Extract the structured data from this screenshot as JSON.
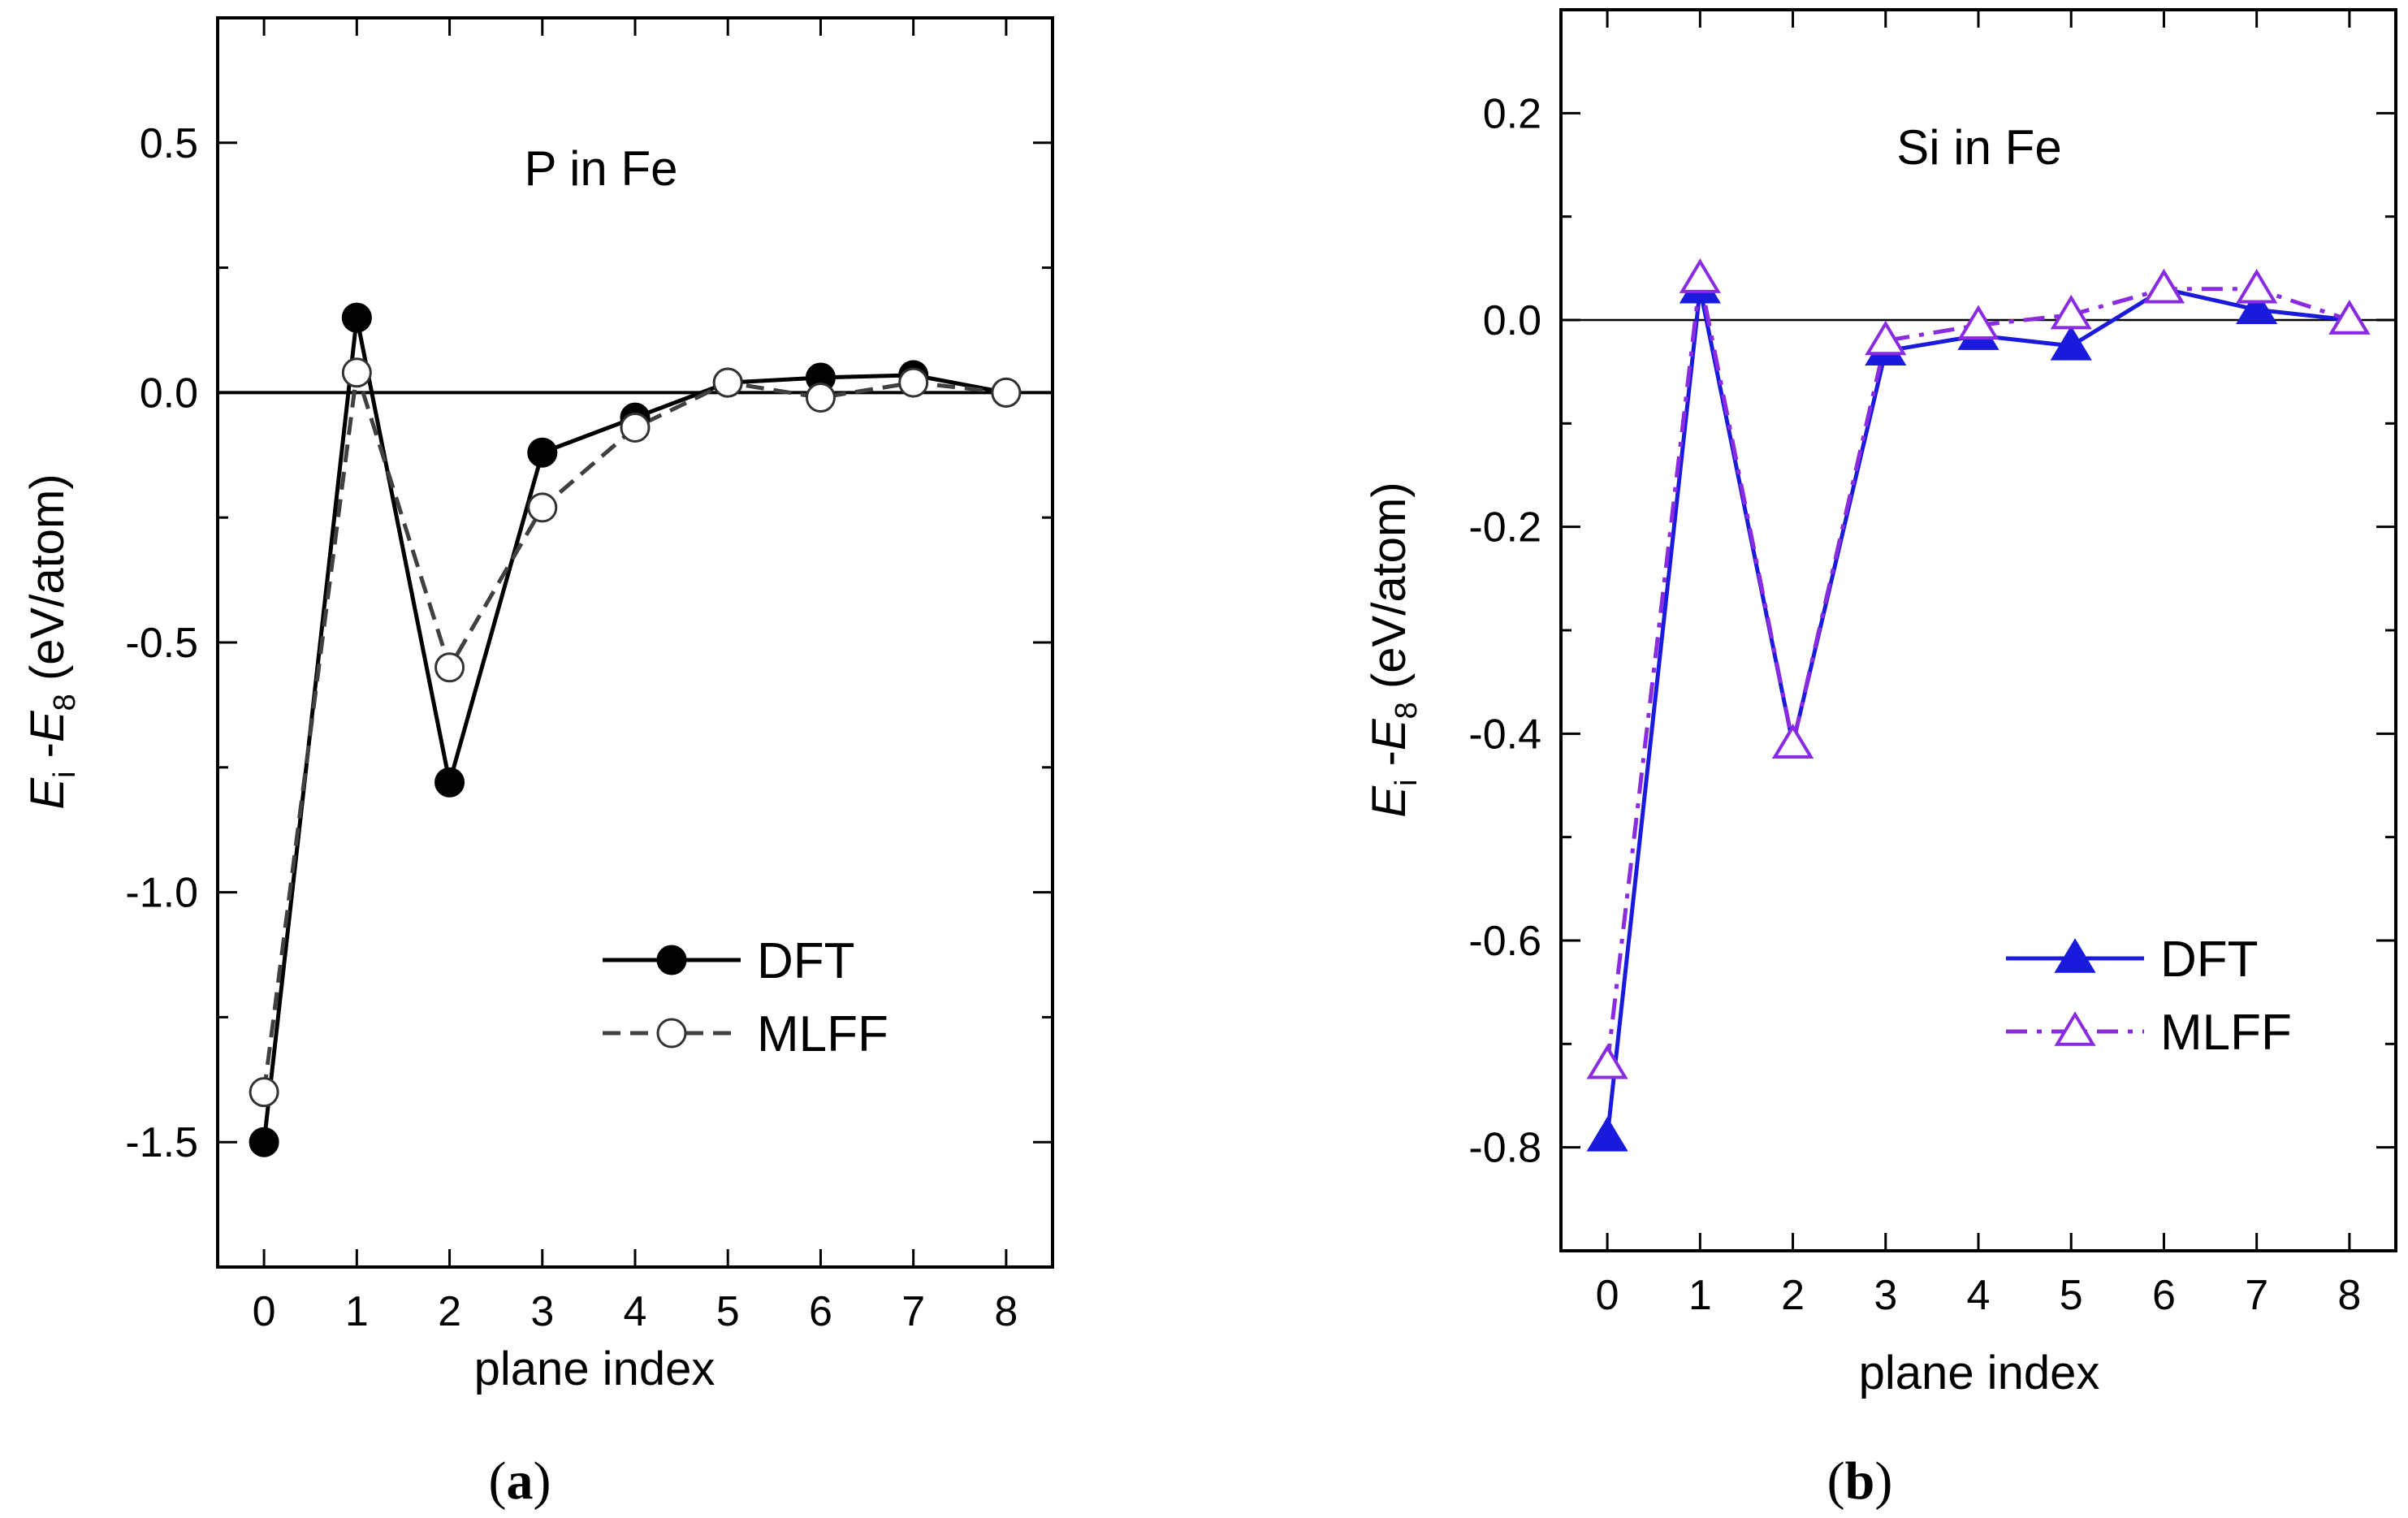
{
  "chart_data": [
    {
      "type": "line",
      "panel_label": "a",
      "title": "P in Fe",
      "xlabel": "plane index",
      "ylabel": {
        "E": "E",
        "sub_i": "i",
        "dash": " -",
        "sub_8": "8",
        "units": " (eV/atom)"
      },
      "xlim": [
        -0.5,
        8.5
      ],
      "ylim": [
        -1.75,
        0.75
      ],
      "x_ticks": [
        0,
        1,
        2,
        3,
        4,
        5,
        6,
        7,
        8
      ],
      "x_tick_labels": [
        "0",
        "1",
        "2",
        "3",
        "4",
        "5",
        "6",
        "7",
        "8"
      ],
      "y_ticks": [
        -1.5,
        -1.0,
        -0.5,
        0.0,
        0.5
      ],
      "y_tick_labels": [
        "-1.5",
        "-1.0",
        "-0.5",
        "0.0",
        "0.5"
      ],
      "zero_line": true,
      "legend_position": "lower-right",
      "x": [
        0,
        1,
        2,
        3,
        4,
        5,
        6,
        7,
        8
      ],
      "series": [
        {
          "name": "DFT",
          "values": [
            -1.5,
            0.15,
            -0.78,
            -0.12,
            -0.05,
            0.02,
            0.03,
            0.035,
            0.0
          ],
          "color": "#000000",
          "marker": "circle-filled",
          "dash": "solid"
        },
        {
          "name": "MLFF",
          "values": [
            -1.4,
            0.04,
            -0.55,
            -0.23,
            -0.07,
            0.02,
            -0.01,
            0.02,
            0.0
          ],
          "color": "#404040",
          "marker": "circle-open",
          "dash": "dashed"
        }
      ]
    },
    {
      "type": "line",
      "panel_label": "b",
      "title": "Si in Fe",
      "xlabel": "plane index",
      "ylabel": {
        "E": "E",
        "sub_i": "i",
        "dash": " -",
        "sub_8": "8",
        "units": " (eV/atom)"
      },
      "xlim": [
        -0.5,
        8.5
      ],
      "ylim": [
        -0.9,
        0.3
      ],
      "x_ticks": [
        0,
        1,
        2,
        3,
        4,
        5,
        6,
        7,
        8
      ],
      "x_tick_labels": [
        "0",
        "1",
        "2",
        "3",
        "4",
        "5",
        "6",
        "7",
        "8"
      ],
      "y_ticks": [
        -0.8,
        -0.6,
        -0.4,
        -0.2,
        0.0,
        0.2
      ],
      "y_tick_labels": [
        "-0.8",
        "-0.6",
        "-0.4",
        "-0.2",
        "0.0",
        "0.2"
      ],
      "zero_line": true,
      "legend_position": "lower-right",
      "x": [
        0,
        1,
        2,
        3,
        4,
        5,
        6,
        7,
        8
      ],
      "series": [
        {
          "name": "DFT",
          "values": [
            -0.79,
            0.03,
            -0.41,
            -0.03,
            -0.015,
            -0.025,
            0.03,
            0.01,
            0.0
          ],
          "color": "#1a1adc",
          "marker": "triangle-filled",
          "dash": "solid"
        },
        {
          "name": "MLFF",
          "values": [
            -0.72,
            0.04,
            -0.41,
            -0.02,
            -0.005,
            0.005,
            0.03,
            0.03,
            0.0
          ],
          "color": "#8a2be2",
          "marker": "triangle-open",
          "dash": "dashdot"
        }
      ]
    }
  ]
}
